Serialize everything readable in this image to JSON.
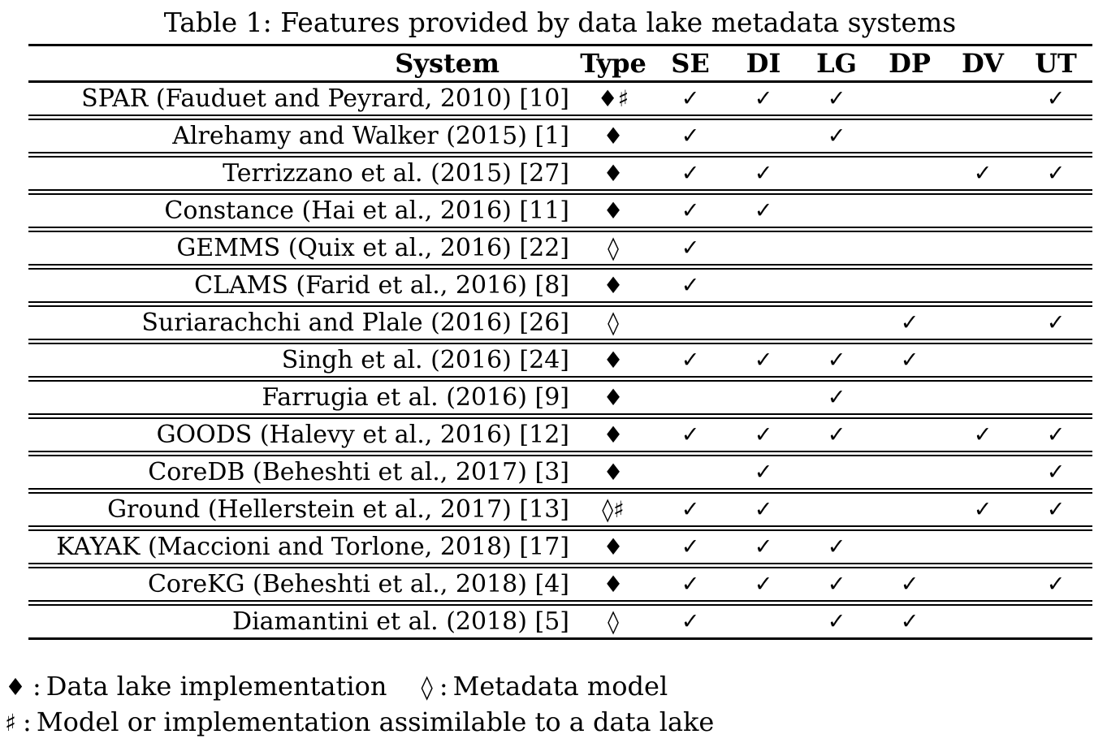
{
  "title": "Table 1: Features provided by data lake metadata systems",
  "table": {
    "columns": [
      "System",
      "Type",
      "SE",
      "DI",
      "LG",
      "DP",
      "DV",
      "UT"
    ],
    "rows": [
      {
        "system": "SPAR (Fauduet and Peyrard, 2010) [10]",
        "type": "♦♯",
        "features": [
          "✓",
          "✓",
          "✓",
          "",
          "",
          "✓"
        ]
      },
      {
        "system": "Alrehamy and Walker (2015) [1]",
        "type": "♦",
        "features": [
          "✓",
          "",
          "✓",
          "",
          "",
          ""
        ]
      },
      {
        "system": "Terrizzano et al. (2015) [27]",
        "type": "♦",
        "features": [
          "✓",
          "✓",
          "",
          "",
          "✓",
          "✓"
        ]
      },
      {
        "system": "Constance (Hai et al., 2016) [11]",
        "type": "♦",
        "features": [
          "✓",
          "✓",
          "",
          "",
          "",
          ""
        ]
      },
      {
        "system": "GEMMS (Quix et al., 2016) [22]",
        "type": "◊",
        "features": [
          "✓",
          "",
          "",
          "",
          "",
          ""
        ]
      },
      {
        "system": "CLAMS (Farid et al., 2016) [8]",
        "type": "♦",
        "features": [
          "✓",
          "",
          "",
          "",
          "",
          ""
        ]
      },
      {
        "system": "Suriarachchi and Plale (2016) [26]",
        "type": "◊",
        "features": [
          "",
          "",
          "",
          "✓",
          "",
          "✓"
        ]
      },
      {
        "system": "Singh et al. (2016) [24]",
        "type": "♦",
        "features": [
          "✓",
          "✓",
          "✓",
          "✓",
          "",
          ""
        ]
      },
      {
        "system": "Farrugia et al. (2016) [9]",
        "type": "♦",
        "features": [
          "",
          "",
          "✓",
          "",
          "",
          ""
        ]
      },
      {
        "system": "GOODS (Halevy et al., 2016) [12]",
        "type": "♦",
        "features": [
          "✓",
          "✓",
          "✓",
          "",
          "✓",
          "✓"
        ]
      },
      {
        "system": "CoreDB (Beheshti et al., 2017) [3]",
        "type": "♦",
        "features": [
          "",
          "✓",
          "",
          "",
          "",
          "✓"
        ]
      },
      {
        "system": "Ground (Hellerstein et al., 2017) [13]",
        "type": "◊♯",
        "features": [
          "✓",
          "✓",
          "",
          "",
          "✓",
          "✓"
        ]
      },
      {
        "system": "KAYAK (Maccioni and Torlone, 2018) [17]",
        "type": "♦",
        "features": [
          "✓",
          "✓",
          "✓",
          "",
          "",
          ""
        ]
      },
      {
        "system": "CoreKG (Beheshti et al., 2018) [4]",
        "type": "♦",
        "features": [
          "✓",
          "✓",
          "✓",
          "✓",
          "",
          "✓"
        ]
      },
      {
        "system": "Diamantini et al. (2018) [5]",
        "type": "◊",
        "features": [
          "✓",
          "",
          "✓",
          "✓",
          "",
          ""
        ]
      }
    ],
    "checkmark_glyph": "✓"
  },
  "legend": {
    "line1": [
      {
        "symbol": "♦",
        "separator": ":",
        "text": "Data lake implementation"
      },
      {
        "symbol": "◊",
        "separator": ":",
        "text": "Metadata model"
      }
    ],
    "line2": [
      {
        "symbol": "♯",
        "separator": ":",
        "text": "Model or implementation assimilable to a data lake"
      }
    ]
  },
  "colors": {
    "text": "#000000",
    "background": "#ffffff",
    "rule": "#000000"
  }
}
